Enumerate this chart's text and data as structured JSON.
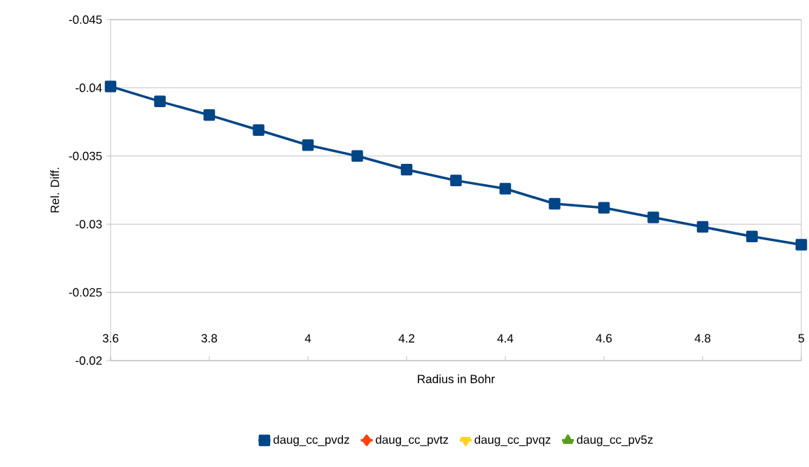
{
  "chart_data": {
    "type": "line",
    "xlabel": "Radius in Bohr",
    "ylabel": "Rel. Diff.",
    "x": [
      3.6,
      3.7,
      3.8,
      3.9,
      4.0,
      4.1,
      4.2,
      4.3,
      4.4,
      4.5,
      4.6,
      4.7,
      4.8,
      4.9,
      5.0
    ],
    "series": [
      {
        "name": "daug_cc_pvdz",
        "color": "#004586",
        "marker": "square",
        "values": [
          -0.0401,
          -0.039,
          -0.038,
          -0.0369,
          -0.0358,
          -0.035,
          -0.034,
          -0.0332,
          -0.0326,
          -0.0315,
          -0.0312,
          -0.0305,
          -0.0298,
          -0.0291,
          -0.0285
        ]
      },
      {
        "name": "daug_cc_pvtz",
        "color": "#ff420e",
        "marker": "diamond",
        "values": [
          null,
          null,
          null,
          null,
          null,
          null,
          null,
          null,
          null,
          null,
          null,
          null,
          null,
          null,
          null
        ]
      },
      {
        "name": "daug_cc_pvqz",
        "color": "#ffd320",
        "marker": "triangle down",
        "values": [
          null,
          null,
          null,
          null,
          null,
          null,
          null,
          null,
          null,
          null,
          null,
          null,
          null,
          null,
          null
        ]
      },
      {
        "name": "daug_cc_pv5z",
        "color": "#579d1c",
        "marker": "triangle",
        "values": [
          null,
          null,
          null,
          null,
          null,
          null,
          null,
          null,
          null,
          null,
          null,
          null,
          null,
          null,
          null
        ]
      }
    ],
    "xlim": [
      3.6,
      5
    ],
    "xticks": [
      3.6,
      3.8,
      4,
      4.2,
      4.4,
      4.6,
      4.8,
      5
    ],
    "ylim": [
      -0.02,
      -0.045
    ],
    "yticks": [
      -0.045,
      -0.04,
      -0.035,
      -0.03,
      -0.025,
      -0.02
    ],
    "grid": "y",
    "legend": "bottom",
    "line_style": "solid"
  }
}
